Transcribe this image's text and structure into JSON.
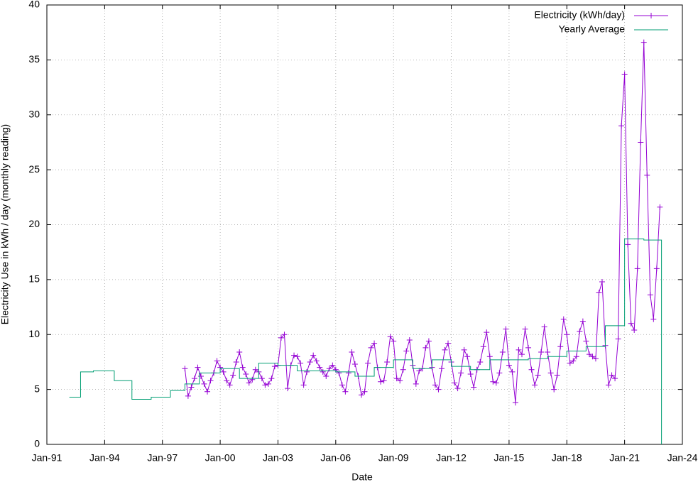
{
  "chart_data": {
    "type": "line",
    "x_label": "Date",
    "y_label": "Electricity Use in kWh / day (monthly reading)",
    "xlim": [
      "1991-01",
      "2024-01"
    ],
    "xticks": [
      {
        "value": "1991-01",
        "label": "Jan-91"
      },
      {
        "value": "1994-01",
        "label": "Jan-94"
      },
      {
        "value": "1997-01",
        "label": "Jan-97"
      },
      {
        "value": "2000-01",
        "label": "Jan-00"
      },
      {
        "value": "2003-01",
        "label": "Jan-03"
      },
      {
        "value": "2006-01",
        "label": "Jan-06"
      },
      {
        "value": "2009-01",
        "label": "Jan-09"
      },
      {
        "value": "2012-01",
        "label": "Jan-12"
      },
      {
        "value": "2015-01",
        "label": "Jan-15"
      },
      {
        "value": "2018-01",
        "label": "Jan-18"
      },
      {
        "value": "2021-01",
        "label": "Jan-21"
      },
      {
        "value": "2024-01",
        "label": "Jan-24"
      }
    ],
    "ylim": [
      0,
      40
    ],
    "yticks": [
      0,
      5,
      10,
      15,
      20,
      25,
      30,
      35,
      40
    ],
    "grid": true,
    "legend": "top-right",
    "series": [
      {
        "name": "Electricity (kWh/day)",
        "color": "#9400d3",
        "style": "linespoints",
        "x": [
          "1998-03",
          "1998-05",
          "1998-07",
          "1998-09",
          "1998-11",
          "1999-01",
          "1999-03",
          "1999-05",
          "1999-07",
          "1999-09",
          "1999-11",
          "2000-01",
          "2000-03",
          "2000-05",
          "2000-07",
          "2000-09",
          "2000-11",
          "2001-01",
          "2001-03",
          "2001-05",
          "2001-07",
          "2001-09",
          "2001-11",
          "2002-01",
          "2002-03",
          "2002-05",
          "2002-07",
          "2002-09",
          "2002-11",
          "2003-01",
          "2003-03",
          "2003-05",
          "2003-07",
          "2003-09",
          "2003-11",
          "2004-01",
          "2004-03",
          "2004-05",
          "2004-07",
          "2004-09",
          "2004-11",
          "2005-01",
          "2005-03",
          "2005-05",
          "2005-07",
          "2005-09",
          "2005-11",
          "2006-01",
          "2006-03",
          "2006-05",
          "2006-07",
          "2006-09",
          "2006-11",
          "2007-01",
          "2007-03",
          "2007-05",
          "2007-07",
          "2007-09",
          "2007-11",
          "2008-01",
          "2008-03",
          "2008-05",
          "2008-07",
          "2008-09",
          "2008-11",
          "2009-01",
          "2009-03",
          "2009-05",
          "2009-07",
          "2009-09",
          "2009-11",
          "2010-01",
          "2010-03",
          "2010-05",
          "2010-07",
          "2010-09",
          "2010-11",
          "2011-01",
          "2011-03",
          "2011-05",
          "2011-07",
          "2011-09",
          "2011-11",
          "2012-01",
          "2012-03",
          "2012-05",
          "2012-07",
          "2012-09",
          "2012-11",
          "2013-01",
          "2013-03",
          "2013-05",
          "2013-07",
          "2013-09",
          "2013-11",
          "2014-01",
          "2014-03",
          "2014-05",
          "2014-07",
          "2014-09",
          "2014-11",
          "2015-01",
          "2015-03",
          "2015-05",
          "2015-07",
          "2015-09",
          "2015-11",
          "2016-01",
          "2016-03",
          "2016-05",
          "2016-07",
          "2016-09",
          "2016-11",
          "2017-01",
          "2017-03",
          "2017-05",
          "2017-07",
          "2017-09",
          "2017-11",
          "2018-01",
          "2018-03",
          "2018-05",
          "2018-07",
          "2018-09",
          "2018-11",
          "2019-01",
          "2019-03",
          "2019-05",
          "2019-07",
          "2019-09",
          "2019-11",
          "2020-01",
          "2020-03",
          "2020-05",
          "2020-07",
          "2020-09",
          "2020-11",
          "2021-01",
          "2021-03",
          "2021-05",
          "2021-07",
          "2021-09",
          "2021-11",
          "2022-01",
          "2022-03",
          "2022-05",
          "2022-07",
          "2022-09",
          "2022-11"
        ],
        "values": [
          6.9,
          4.4,
          5.2,
          6.0,
          7.0,
          6.2,
          5.5,
          4.8,
          5.8,
          6.5,
          7.6,
          7.0,
          6.6,
          5.8,
          5.4,
          6.3,
          7.5,
          8.4,
          7.0,
          6.4,
          5.6,
          5.9,
          6.8,
          6.6,
          6.0,
          5.4,
          5.5,
          6.0,
          7.1,
          7.2,
          9.7,
          10.0,
          5.1,
          7.2,
          8.1,
          8.0,
          7.4,
          5.4,
          6.6,
          7.5,
          8.1,
          7.6,
          7.0,
          6.6,
          6.2,
          6.9,
          7.2,
          6.8,
          6.5,
          5.4,
          4.8,
          6.5,
          8.4,
          7.3,
          6.2,
          4.5,
          4.8,
          7.4,
          8.8,
          9.2,
          7.0,
          5.7,
          5.8,
          7.5,
          9.8,
          9.4,
          6.0,
          5.8,
          6.8,
          8.5,
          9.5,
          7.2,
          5.5,
          6.7,
          6.9,
          8.8,
          9.4,
          7.0,
          5.4,
          5.0,
          6.9,
          8.6,
          9.2,
          7.5,
          5.6,
          5.1,
          6.5,
          8.6,
          8.0,
          6.4,
          5.2,
          6.8,
          7.5,
          8.9,
          10.2,
          8.0,
          5.7,
          5.6,
          6.5,
          8.4,
          10.5,
          7.2,
          6.6,
          3.8,
          8.6,
          8.2,
          10.5,
          8.8,
          6.8,
          5.4,
          6.3,
          8.4,
          10.7,
          8.4,
          6.5,
          5.0,
          6.3,
          8.9,
          11.4,
          10.0,
          7.4,
          7.6,
          8.0,
          10.3,
          11.2,
          9.4,
          8.2,
          8.0,
          7.8,
          13.8,
          14.8,
          9.0,
          5.4,
          6.3,
          6.0,
          9.6,
          29.0,
          33.7,
          18.2,
          11.0,
          10.4,
          16.0,
          27.5,
          36.6,
          24.5,
          13.6,
          11.4,
          16.0,
          21.6
        ]
      },
      {
        "name": "Yearly Average",
        "color": "#009e73",
        "style": "steps",
        "x": [
          "1992-03",
          "1992-10",
          "1993-06",
          "1994-07",
          "1995-06",
          "1996-06",
          "1997-06",
          "1998-03",
          "1998-12",
          "2000-01",
          "2001-01",
          "2002-01",
          "2003-01",
          "2004-01",
          "2005-01",
          "2006-01",
          "2007-01",
          "2008-01",
          "2009-01",
          "2010-01",
          "2011-01",
          "2012-01",
          "2013-01",
          "2014-01",
          "2015-01",
          "2016-01",
          "2017-01",
          "2018-01",
          "2019-01",
          "2020-01",
          "2021-01",
          "2022-01",
          "2022-12"
        ],
        "values": [
          4.3,
          6.6,
          6.7,
          5.8,
          4.1,
          4.3,
          4.9,
          5.5,
          6.5,
          6.9,
          6.0,
          7.4,
          7.2,
          6.7,
          6.7,
          6.6,
          6.2,
          7.0,
          7.7,
          6.9,
          7.7,
          7.1,
          6.8,
          7.7,
          7.7,
          7.8,
          8.0,
          8.5,
          8.9,
          10.8,
          18.7,
          18.6,
          0
        ]
      }
    ]
  }
}
